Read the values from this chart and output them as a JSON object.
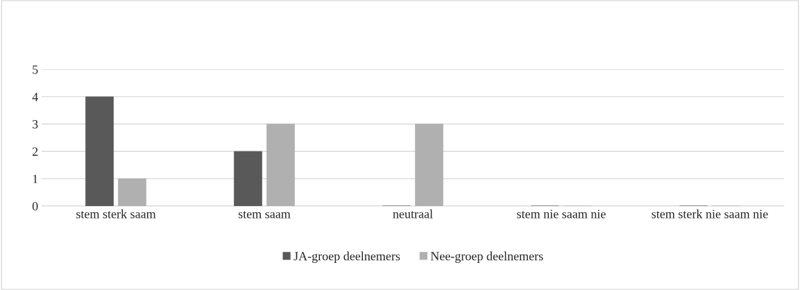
{
  "chart_data": {
    "type": "bar",
    "categories": [
      "stem sterk saam",
      "stem saam",
      "neutraal",
      "stem nie saam nie",
      "stem sterk nie saam nie"
    ],
    "series": [
      {
        "name": "JA-groep deelnemers",
        "color": "#595959",
        "values": [
          4,
          2,
          0,
          0,
          0
        ]
      },
      {
        "name": "Nee-groep deelnemers",
        "color": "#b0b0b0",
        "values": [
          1,
          3,
          3,
          0,
          0
        ]
      }
    ],
    "ylim": [
      0,
      5
    ],
    "yticks": [
      0,
      1,
      2,
      3,
      4,
      5
    ],
    "grid": "y",
    "legend": "bottom"
  }
}
